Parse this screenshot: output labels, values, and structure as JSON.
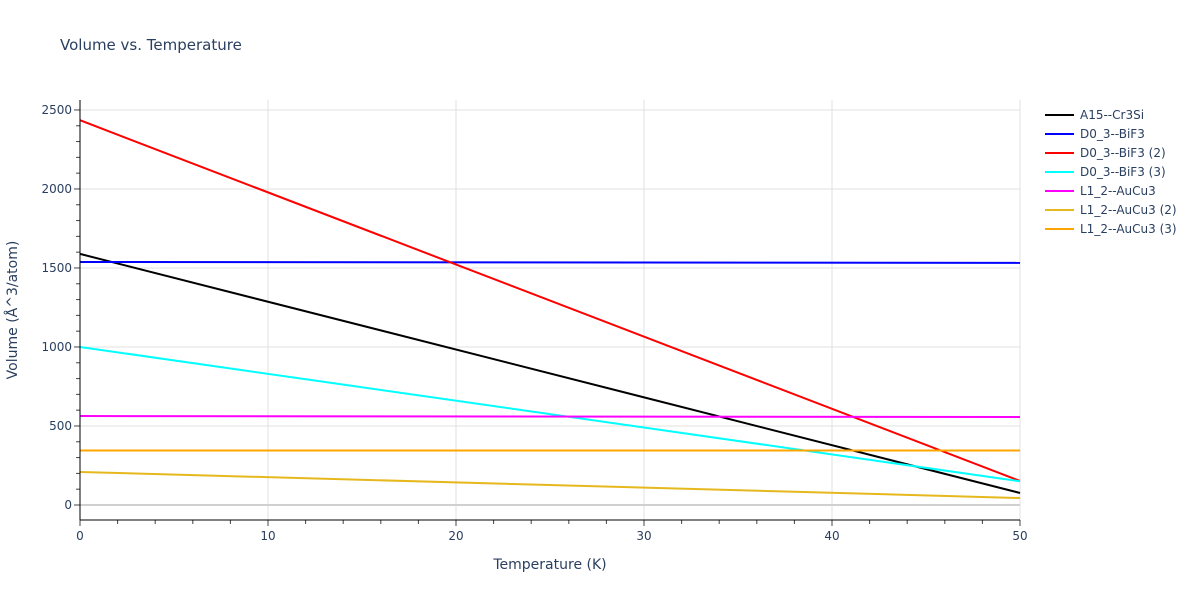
{
  "chart_data": {
    "type": "line",
    "title": "Volume vs. Temperature",
    "xlabel": "Temperature (K)",
    "ylabel": "Volume (Å^3/atom)",
    "xlim": [
      0,
      50
    ],
    "ylim": [
      -95,
      2563
    ],
    "xticks": [
      0,
      10,
      20,
      30,
      40,
      50
    ],
    "yticks": [
      0,
      500,
      1000,
      1500,
      2000,
      2500
    ],
    "grid": true,
    "legend_position": "right",
    "series": [
      {
        "name": "A15--Cr3Si",
        "color": "#000000",
        "x": [
          0,
          50
        ],
        "y": [
          1589,
          76
        ]
      },
      {
        "name": "D0_3--BiF3",
        "color": "#0000ff",
        "x": [
          0,
          50
        ],
        "y": [
          1538,
          1532
        ]
      },
      {
        "name": "D0_3--BiF3 (2)",
        "color": "#ff0000",
        "x": [
          0,
          50
        ],
        "y": [
          2435,
          152
        ]
      },
      {
        "name": "D0_3--BiF3 (3)",
        "color": "#00ffff",
        "x": [
          0,
          50
        ],
        "y": [
          1000,
          150
        ]
      },
      {
        "name": "L1_2--AuCu3",
        "color": "#ff00ff",
        "x": [
          0,
          50
        ],
        "y": [
          563,
          557
        ]
      },
      {
        "name": "L1_2--AuCu3 (2)",
        "color": "#e6b81e",
        "x": [
          0,
          50
        ],
        "y": [
          209,
          44
        ]
      },
      {
        "name": "L1_2--AuCu3 (3)",
        "color": "#ffa500",
        "x": [
          0,
          50
        ],
        "y": [
          345,
          345
        ]
      }
    ]
  }
}
